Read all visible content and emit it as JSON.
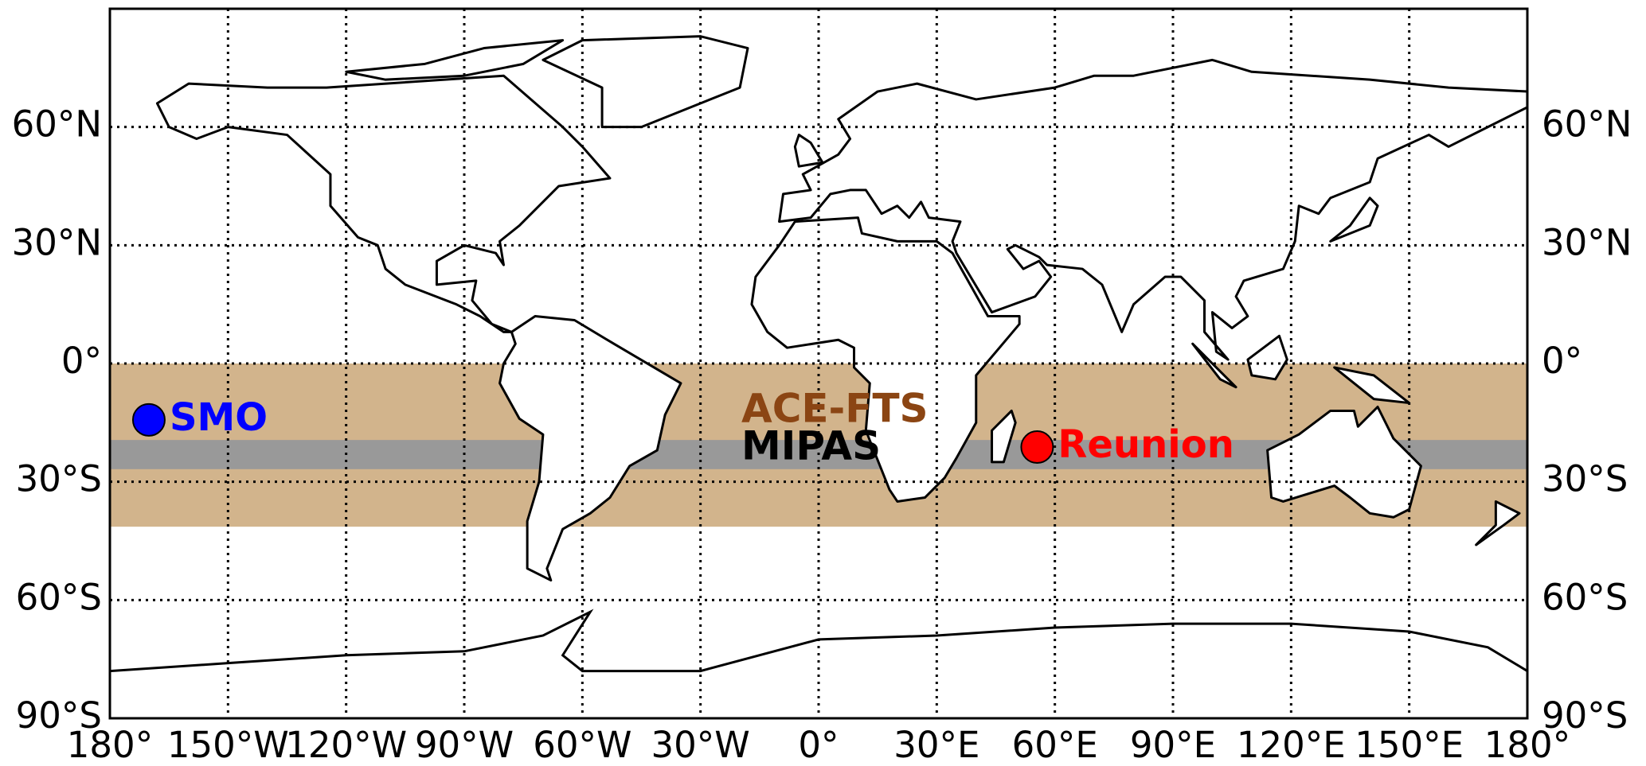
{
  "chart_data": {
    "type": "map",
    "xlim": [
      -180,
      180
    ],
    "ylim": [
      -90,
      90
    ],
    "xticks": [
      {
        "value": -180,
        "label": "180°"
      },
      {
        "value": -150,
        "label": "150°W"
      },
      {
        "value": -120,
        "label": "120°W"
      },
      {
        "value": -90,
        "label": "90°W"
      },
      {
        "value": -60,
        "label": "60°W"
      },
      {
        "value": -30,
        "label": "30°W"
      },
      {
        "value": 0,
        "label": "0°"
      },
      {
        "value": 30,
        "label": "30°E"
      },
      {
        "value": 60,
        "label": "60°E"
      },
      {
        "value": 90,
        "label": "90°E"
      },
      {
        "value": 120,
        "label": "120°E"
      },
      {
        "value": 150,
        "label": "150°E"
      },
      {
        "value": 180,
        "label": "180°"
      }
    ],
    "yticks": [
      {
        "value": -90,
        "label": "90°S"
      },
      {
        "value": -60,
        "label": "60°S"
      },
      {
        "value": -30,
        "label": "30°S"
      },
      {
        "value": 0,
        "label": "0°"
      },
      {
        "value": 30,
        "label": "30°N"
      },
      {
        "value": 60,
        "label": "60°N"
      }
    ],
    "grid": true,
    "bands": [
      {
        "name": "ACE-FTS",
        "range": [
          -41.4,
          0
        ],
        "color": "#d2b48c",
        "label_color": "#8b4513"
      },
      {
        "name": "MIPAS",
        "range": [
          -26.8,
          -19.4
        ],
        "color": "#999999",
        "label_color": "#000000"
      }
    ],
    "points": [
      {
        "name": "SMO",
        "lon": -170.1,
        "lat": -14.3,
        "color": "#0000ff"
      },
      {
        "name": "Reunion",
        "lon": 55.5,
        "lat": -21.2,
        "color": "#ff0000"
      }
    ]
  }
}
